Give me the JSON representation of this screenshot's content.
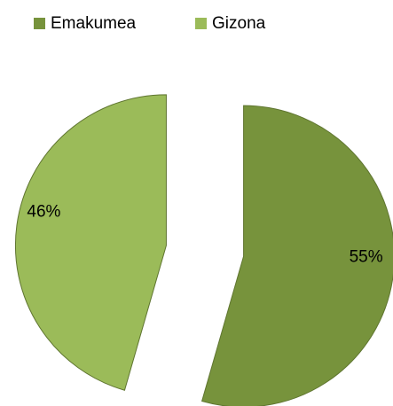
{
  "chart_data": {
    "type": "pie",
    "categories": [
      "Emakumea",
      "Gizona"
    ],
    "values": [
      55,
      46
    ],
    "value_labels": [
      "55%",
      "46%"
    ],
    "colors": [
      "#77933c",
      "#9bbb59"
    ],
    "legend": "top"
  }
}
